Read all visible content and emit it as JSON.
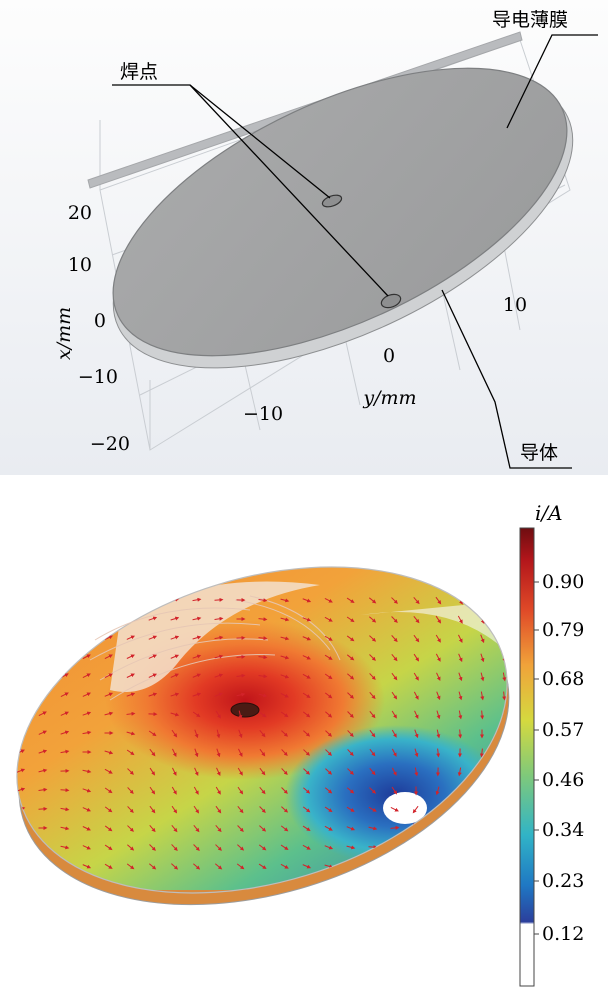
{
  "top_panel": {
    "callouts": {
      "solder_points": "焊点",
      "conductive_film": "导电薄膜",
      "conductor": "导体"
    },
    "x_axis": {
      "unit_label": "x/mm",
      "ticks": [
        "20",
        "10",
        "0",
        "−10",
        "−20"
      ]
    },
    "y_axis": {
      "unit_label": "y/mm",
      "ticks": [
        "−10",
        "0",
        "10"
      ]
    }
  },
  "bottom_panel": {
    "colorbar": {
      "title": "i/A",
      "ticks": [
        "0.90",
        "0.79",
        "0.68",
        "0.57",
        "0.46",
        "0.34",
        "0.23",
        "0.12"
      ],
      "colors": [
        "#ffffff",
        "#2b3f9c",
        "#1f78c4",
        "#31b4c6",
        "#7fc97a",
        "#d5d93f",
        "#f0a33a",
        "#e04a28",
        "#b3161b",
        "#6e0d10"
      ]
    }
  }
}
